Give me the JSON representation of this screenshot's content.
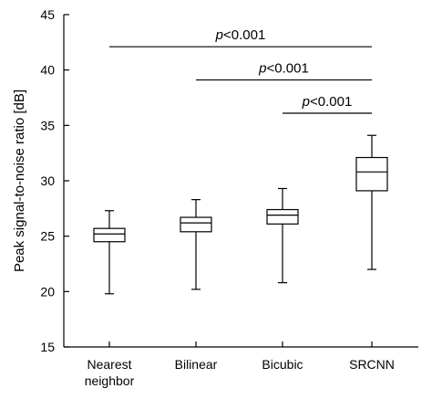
{
  "chart_data": {
    "type": "boxplot",
    "title": "",
    "xlabel": "",
    "ylabel": "Peak signal-to-noise ratio [dB]",
    "ylim": [
      15,
      45
    ],
    "yticks": [
      15,
      20,
      25,
      30,
      35,
      40,
      45
    ],
    "categories": [
      [
        "Nearest",
        "neighbor"
      ],
      [
        "Bilinear"
      ],
      [
        "Bicubic"
      ],
      [
        "SRCNN"
      ]
    ],
    "boxes": [
      {
        "min": 19.8,
        "q1": 24.5,
        "median": 25.2,
        "q3": 25.7,
        "max": 27.3
      },
      {
        "min": 20.2,
        "q1": 25.4,
        "median": 26.2,
        "q3": 26.7,
        "max": 28.3
      },
      {
        "min": 20.8,
        "q1": 26.1,
        "median": 26.9,
        "q3": 27.4,
        "max": 29.3
      },
      {
        "min": 22.0,
        "q1": 29.1,
        "median": 30.8,
        "q3": 32.1,
        "max": 34.1
      }
    ],
    "annotations": [
      {
        "from": 0,
        "to": 3,
        "y": 42.1,
        "p_symbol": "p",
        "p_text": "<0.001"
      },
      {
        "from": 1,
        "to": 3,
        "y": 39.1,
        "p_symbol": "p",
        "p_text": "<0.001"
      },
      {
        "from": 2,
        "to": 3,
        "y": 36.1,
        "p_symbol": "p",
        "p_text": "<0.001"
      }
    ],
    "grid": false,
    "legend": "none"
  }
}
